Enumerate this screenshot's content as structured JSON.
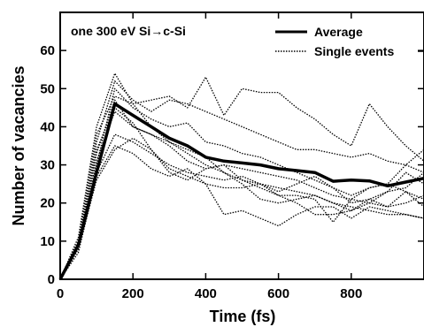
{
  "chart_data": {
    "type": "line",
    "title": "",
    "annotation": "one 300 eV Si→c-Si",
    "xlabel": "Time (fs)",
    "ylabel": "Number of vacancies",
    "xlim": [
      0,
      1000
    ],
    "ylim": [
      0,
      70
    ],
    "xticks": [
      0,
      200,
      400,
      600,
      800
    ],
    "yticks": [
      0,
      10,
      20,
      30,
      40,
      50,
      60
    ],
    "legend_position": "top-right",
    "grid": false,
    "x": [
      0,
      50,
      100,
      150,
      200,
      250,
      300,
      350,
      400,
      450,
      500,
      550,
      600,
      650,
      700,
      750,
      800,
      850,
      900,
      950,
      1000
    ],
    "series": [
      {
        "name": "Average",
        "style": "solid-thick",
        "color": "#000000",
        "values": [
          0,
          9,
          28,
          46,
          43,
          40,
          37,
          35,
          32,
          31,
          30.5,
          30,
          29,
          28.5,
          28,
          25.7,
          26,
          25.8,
          24.5,
          25.5,
          26.5
        ]
      },
      {
        "name": "Single events",
        "style": "dotted",
        "color": "#000000",
        "values": [
          0,
          11,
          40,
          54,
          46,
          40,
          36,
          33,
          30,
          28,
          26,
          25,
          24,
          23,
          22,
          20,
          19,
          18,
          17,
          17,
          16
        ]
      },
      {
        "name": "",
        "style": "dotted",
        "color": "#000000",
        "values": [
          0,
          10,
          38,
          48,
          46,
          47,
          48,
          45,
          53,
          43,
          50,
          49,
          49,
          45,
          42,
          38,
          35,
          46,
          40,
          35,
          31
        ]
      },
      {
        "name": "",
        "style": "dotted",
        "color": "#000000",
        "values": [
          0,
          9,
          36,
          52,
          47,
          44,
          47,
          46,
          44,
          42,
          40,
          38,
          36,
          34,
          34,
          33,
          32,
          33,
          31,
          30,
          28
        ]
      },
      {
        "name": "",
        "style": "dotted",
        "color": "#000000",
        "values": [
          0,
          8,
          30,
          50,
          45,
          42,
          40,
          41,
          36,
          35,
          33,
          32,
          30,
          28,
          26,
          24,
          22,
          24,
          25,
          30,
          34
        ]
      },
      {
        "name": "",
        "style": "dotted",
        "color": "#000000",
        "values": [
          0,
          9,
          33,
          47,
          40,
          38,
          35,
          31,
          29,
          30,
          29,
          28,
          27,
          26,
          24,
          22,
          21,
          20,
          19,
          20,
          22
        ]
      },
      {
        "name": "",
        "style": "dotted",
        "color": "#000000",
        "values": [
          0,
          8,
          28,
          38,
          36,
          33,
          30,
          28,
          27,
          26,
          27,
          25,
          23,
          25,
          27,
          24,
          20,
          21,
          23,
          28,
          25
        ]
      },
      {
        "name": "",
        "style": "dotted",
        "color": "#000000",
        "values": [
          0,
          10,
          31,
          44,
          40,
          38,
          36,
          34,
          32,
          28,
          25,
          21,
          20,
          21,
          22,
          20,
          18,
          21,
          19,
          23,
          21
        ]
      },
      {
        "name": "",
        "style": "dotted",
        "color": "#000000",
        "values": [
          0,
          7,
          27,
          35,
          33,
          29,
          27,
          29,
          25,
          17,
          18,
          16,
          14,
          17,
          19,
          19,
          16,
          19,
          18,
          17,
          16
        ]
      },
      {
        "name": "",
        "style": "dotted",
        "color": "#000000",
        "values": [
          0,
          9,
          34,
          45,
          41,
          34,
          28,
          26,
          29,
          30,
          26,
          24,
          22,
          22,
          21,
          15,
          21,
          24,
          25,
          23,
          19
        ]
      },
      {
        "name": "",
        "style": "dotted",
        "color": "#000000",
        "values": [
          0,
          8,
          26,
          34,
          37,
          34,
          29,
          27,
          25,
          24,
          24,
          25,
          22,
          20,
          17,
          17,
          18,
          20,
          23,
          24,
          28
        ]
      }
    ]
  }
}
